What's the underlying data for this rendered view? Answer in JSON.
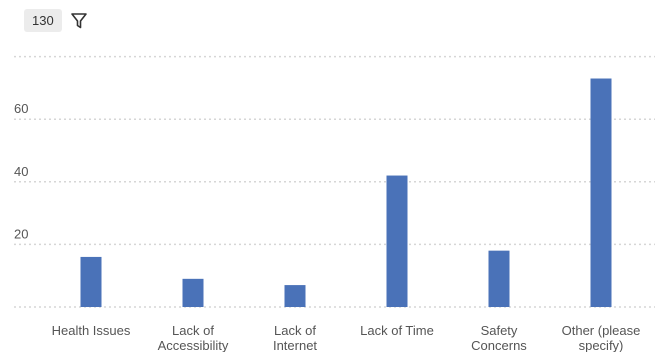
{
  "toolbar": {
    "response_count": "130",
    "filter_icon": "filter-icon"
  },
  "colors": {
    "bar": "#4a72b8",
    "grid": "#d6d6d6"
  },
  "chart_data": {
    "type": "bar",
    "title": "",
    "xlabel": "",
    "ylabel": "",
    "categories": [
      [
        "Health Issues"
      ],
      [
        "Lack of",
        "Accessibility"
      ],
      [
        "Lack of",
        "Internet"
      ],
      [
        "Lack of Time"
      ],
      [
        "Safety",
        "Concerns"
      ],
      [
        "Other (please",
        "specify)"
      ]
    ],
    "values": [
      16,
      9,
      7,
      42,
      18,
      73
    ],
    "yticks": [
      20,
      40,
      60
    ],
    "ylim": [
      0,
      80
    ],
    "grid": true,
    "legend": "none"
  }
}
